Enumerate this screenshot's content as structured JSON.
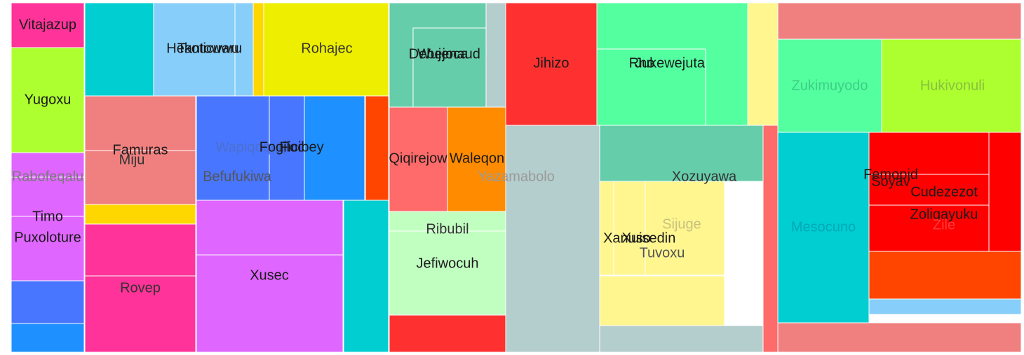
{
  "chart_data": {
    "type": "treemap",
    "title": "",
    "tiles": [
      {
        "label": "Vitajazup",
        "value": 4.6,
        "color": "#ff3399",
        "label_color": "#1a1a1a"
      },
      {
        "label": "Yugoxu",
        "value": 6.2,
        "color": "#adff2f",
        "label_color": "#1a1a1a"
      },
      {
        "label": "Rabofeqalu",
        "value": 3.0,
        "color": "#df66ff",
        "label_color": "#7a7a7a"
      },
      {
        "label": "Timo",
        "value": 3.4,
        "color": "#df66ff",
        "label_color": "#1a1a1a"
      },
      {
        "label": "Puxoloture",
        "value": 3.1,
        "color": "#df66ff",
        "label_color": "#1a1a1a"
      },
      {
        "label": "",
        "value": 2.4,
        "color": "#4876ff",
        "label_color": "#1a1a1a"
      },
      {
        "label": "",
        "value": 1.5,
        "color": "#1e90ff",
        "label_color": "#1a1a1a"
      },
      {
        "label": "",
        "value": 5.2,
        "color": "#00ced1",
        "label_color": "#1a1a1a"
      },
      {
        "label": "Hekoticuwu",
        "value": 5.0,
        "color": "#87cefa",
        "label_color": "#1a1a1a"
      },
      {
        "label": "Tantowaru",
        "value": 1.0,
        "color": "#87cefa",
        "label_color": "#1a1a1a"
      },
      {
        "label": "",
        "value": 0.6,
        "color": "#ffd700",
        "label_color": "#1a1a1a"
      },
      {
        "label": "Rohajec",
        "value": 7.0,
        "color": "#eeee00",
        "label_color": "#333333"
      },
      {
        "label": "Famuras",
        "value": 3.6,
        "color": "#f08080",
        "label_color": "#1a1a1a"
      },
      {
        "label": "Miju",
        "value": 3.5,
        "color": "#f08080",
        "label_color": "#333333"
      },
      {
        "label": "",
        "value": 0.9,
        "color": "#ffd700",
        "label_color": "#1a1a1a"
      },
      {
        "label": "",
        "value": 2.6,
        "color": "#ff3399",
        "label_color": "#1a1a1a"
      },
      {
        "label": "Rovep",
        "value": 5.2,
        "color": "#ff3399",
        "label_color": "#333333"
      },
      {
        "label": "Wapiqoquqi",
        "value": 4.0,
        "color": "#4876ff",
        "label_color": "#4a6fd0"
      },
      {
        "label": "Fogiloc",
        "value": 2.5,
        "color": "#4876ff",
        "label_color": "#1a1a1a"
      },
      {
        "label": "Ficibey",
        "value": 2.8,
        "color": "#1e90ff",
        "label_color": "#1a1a1a"
      },
      {
        "label": "Befufukiwa",
        "value": 1.5,
        "color": "#ff4500",
        "label_color": "#555555"
      },
      {
        "label": "",
        "value": 2.5,
        "color": "#df66ff",
        "label_color": "#1a1a1a"
      },
      {
        "label": "Xusec",
        "value": 6.0,
        "color": "#df66ff",
        "label_color": "#1a1a1a"
      },
      {
        "label": "",
        "value": 2.6,
        "color": "#00ced1",
        "label_color": "#1a1a1a"
      },
      {
        "label": "Debejoca",
        "value": 3.0,
        "color": "#66cdaa",
        "label_color": "#1a1a1a"
      },
      {
        "label": "Wujenaud",
        "value": 2.5,
        "color": "#66cdaa",
        "label_color": "#1a1a1a"
      },
      {
        "label": "",
        "value": 0.7,
        "color": "#b4cdcd",
        "label_color": "#1a1a1a"
      },
      {
        "label": "Qiqirejow",
        "value": 2.9,
        "color": "#ff6a6a",
        "label_color": "#1a1a1a"
      },
      {
        "label": "Waleqon",
        "value": 2.8,
        "color": "#ff8c00",
        "label_color": "#1a1a1a"
      },
      {
        "label": "Ribubil",
        "value": 1.6,
        "color": "#c1ffc1",
        "label_color": "#333333"
      },
      {
        "label": "Jefiwocuh",
        "value": 3.2,
        "color": "#c1ffc1",
        "label_color": "#1a1a1a"
      },
      {
        "label": "",
        "value": 1.6,
        "color": "#ff3030",
        "label_color": "#1a1a1a"
      },
      {
        "label": "Jihizo",
        "value": 4.0,
        "color": "#ff3030",
        "label_color": "#1a1a1a"
      },
      {
        "label": "Yazamabolo",
        "value": 7.2,
        "color": "#b4cdcd",
        "label_color": "#9a9a9a"
      },
      {
        "label": "Jukewejuta",
        "value": 4.4,
        "color": "#54ff9f",
        "label_color": "#1a1a1a"
      },
      {
        "label": "Rno",
        "value": 4.0,
        "color": "#54ff9f",
        "label_color": "#1a1a1a"
      },
      {
        "label": "",
        "value": 1.2,
        "color": "#fff68f",
        "label_color": "#1a1a1a"
      },
      {
        "label": "Xozuyawa",
        "value": 6.8,
        "color": "#66cdaa",
        "label_color": "#333333"
      },
      {
        "label": "Xanuso",
        "value": 3.6,
        "color": "#fff68f",
        "label_color": "#1a1a1a"
      },
      {
        "label": "Xuisedin",
        "value": 3.2,
        "color": "#fff68f",
        "label_color": "#1a1a1a"
      },
      {
        "label": "Sijuge",
        "value": 2.6,
        "color": "#fff68f",
        "label_color": "#c8c080"
      },
      {
        "label": "Tuvoxu",
        "value": 2.2,
        "color": "#fff68f",
        "label_color": "#555555"
      },
      {
        "label": "",
        "value": 1.2,
        "color": "#b4cdcd",
        "label_color": "#1a1a1a"
      },
      {
        "label": "",
        "value": 0.6,
        "color": "#ff6a6a",
        "label_color": "#1a1a1a"
      },
      {
        "label": "",
        "value": 2.0,
        "color": "#f08080",
        "label_color": "#1a1a1a"
      },
      {
        "label": "Zukimuyodo",
        "value": 3.3,
        "color": "#54ff9f",
        "label_color": "#3ccf86"
      },
      {
        "label": "Hukivonuli",
        "value": 3.6,
        "color": "#adff2f",
        "label_color": "#88c040"
      },
      {
        "label": "Mesocuno",
        "value": 5.6,
        "color": "#00ced1",
        "label_color": "#00a8b8"
      },
      {
        "label": "Femopid",
        "value": 3.0,
        "color": "#ff0000",
        "label_color": "#1a1a1a"
      },
      {
        "label": "Soyav",
        "value": 2.0,
        "color": "#ff0000",
        "label_color": "#1a1a1a"
      },
      {
        "label": "Cudezezot",
        "value": 2.0,
        "color": "#ff0000",
        "label_color": "#1a1a1a"
      },
      {
        "label": "Zoliqayuku",
        "value": 2.0,
        "color": "#ff0000",
        "label_color": "#1a1a1a"
      },
      {
        "label": "Zile",
        "value": 1.0,
        "color": "#ff0000",
        "label_color": "#ff3a3a"
      },
      {
        "label": "",
        "value": 1.4,
        "color": "#ff4500",
        "label_color": "#1a1a1a"
      },
      {
        "label": "",
        "value": 0.5,
        "color": "#87cefa",
        "label_color": "#1a1a1a"
      },
      {
        "label": "",
        "value": 1.2,
        "color": "#f08080",
        "label_color": "#1a1a1a"
      }
    ]
  }
}
